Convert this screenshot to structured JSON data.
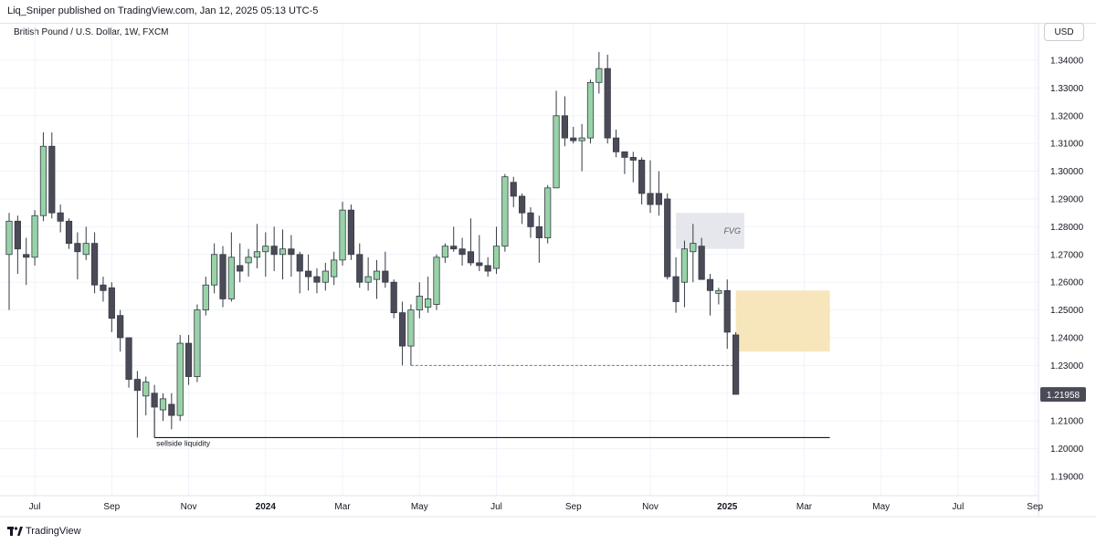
{
  "header": {
    "published": "Liq_Sniper published on TradingView.com, Jan 12, 2025 05:13 UTC-5",
    "symbol": "British Pound / U.S. Dollar, 1W, FXCM",
    "currency_button": "USD"
  },
  "footer": {
    "brand": "TradingView",
    "logo_icon": "tradingview-logo-icon"
  },
  "colors": {
    "bull_fill": "#98d3a7",
    "bear_fill": "#4a4b57",
    "wick": "#363a45",
    "fvg_fill": "#e6e7ec",
    "zone_fill": "#f7e6bb",
    "grid": "#f0f3fa",
    "price_label_bg": "#4a4b57"
  },
  "chart_data": {
    "type": "candlestick",
    "symbol": "GBP/USD",
    "interval": "1W",
    "currency": "USD",
    "ylim": [
      1.185,
      1.345
    ],
    "y_ticks": [
      "1.34000",
      "1.33000",
      "1.32000",
      "1.31000",
      "1.30000",
      "1.29000",
      "1.28000",
      "1.27000",
      "1.26000",
      "1.25000",
      "1.24000",
      "1.23000",
      "1.22000",
      "1.21000",
      "1.20000",
      "1.19000"
    ],
    "x_ticks": [
      {
        "label": "Jul",
        "index": 3,
        "bold": false
      },
      {
        "label": "Sep",
        "index": 12,
        "bold": false
      },
      {
        "label": "Nov",
        "index": 21,
        "bold": false
      },
      {
        "label": "2024",
        "index": 30,
        "bold": true
      },
      {
        "label": "Mar",
        "index": 39,
        "bold": false
      },
      {
        "label": "May",
        "index": 48,
        "bold": false
      },
      {
        "label": "Jul",
        "index": 57,
        "bold": false
      },
      {
        "label": "Sep",
        "index": 66,
        "bold": false
      },
      {
        "label": "Nov",
        "index": 75,
        "bold": false
      },
      {
        "label": "2025",
        "index": 84,
        "bold": true
      },
      {
        "label": "Mar",
        "index": 93,
        "bold": false
      },
      {
        "label": "May",
        "index": 102,
        "bold": false
      },
      {
        "label": "Jul",
        "index": 111,
        "bold": false
      },
      {
        "label": "Sep",
        "index": 120,
        "bold": false
      }
    ],
    "candles": [
      {
        "o": 1.27,
        "h": 1.285,
        "l": 1.25,
        "c": 1.282
      },
      {
        "o": 1.282,
        "h": 1.284,
        "l": 1.263,
        "c": 1.272
      },
      {
        "o": 1.27,
        "h": 1.276,
        "l": 1.259,
        "c": 1.269
      },
      {
        "o": 1.269,
        "h": 1.286,
        "l": 1.266,
        "c": 1.284
      },
      {
        "o": 1.284,
        "h": 1.314,
        "l": 1.282,
        "c": 1.309
      },
      {
        "o": 1.309,
        "h": 1.314,
        "l": 1.283,
        "c": 1.285
      },
      {
        "o": 1.285,
        "h": 1.288,
        "l": 1.278,
        "c": 1.282
      },
      {
        "o": 1.282,
        "h": 1.283,
        "l": 1.272,
        "c": 1.274
      },
      {
        "o": 1.274,
        "h": 1.278,
        "l": 1.261,
        "c": 1.271
      },
      {
        "o": 1.27,
        "h": 1.28,
        "l": 1.268,
        "c": 1.274
      },
      {
        "o": 1.274,
        "h": 1.278,
        "l": 1.256,
        "c": 1.259
      },
      {
        "o": 1.259,
        "h": 1.262,
        "l": 1.253,
        "c": 1.257
      },
      {
        "o": 1.258,
        "h": 1.26,
        "l": 1.242,
        "c": 1.247
      },
      {
        "o": 1.248,
        "h": 1.25,
        "l": 1.235,
        "c": 1.24
      },
      {
        "o": 1.24,
        "h": 1.24,
        "l": 1.222,
        "c": 1.225
      },
      {
        "o": 1.225,
        "h": 1.228,
        "l": 1.204,
        "c": 1.221
      },
      {
        "o": 1.219,
        "h": 1.226,
        "l": 1.212,
        "c": 1.224
      },
      {
        "o": 1.22,
        "h": 1.223,
        "l": 1.213,
        "c": 1.215
      },
      {
        "o": 1.214,
        "h": 1.22,
        "l": 1.21,
        "c": 1.218
      },
      {
        "o": 1.216,
        "h": 1.22,
        "l": 1.207,
        "c": 1.212
      },
      {
        "o": 1.212,
        "h": 1.241,
        "l": 1.21,
        "c": 1.238
      },
      {
        "o": 1.238,
        "h": 1.241,
        "l": 1.223,
        "c": 1.226
      },
      {
        "o": 1.226,
        "h": 1.252,
        "l": 1.224,
        "c": 1.25
      },
      {
        "o": 1.25,
        "h": 1.262,
        "l": 1.248,
        "c": 1.259
      },
      {
        "o": 1.259,
        "h": 1.274,
        "l": 1.256,
        "c": 1.27
      },
      {
        "o": 1.27,
        "h": 1.273,
        "l": 1.251,
        "c": 1.254
      },
      {
        "o": 1.254,
        "h": 1.278,
        "l": 1.253,
        "c": 1.269
      },
      {
        "o": 1.266,
        "h": 1.274,
        "l": 1.26,
        "c": 1.264
      },
      {
        "o": 1.267,
        "h": 1.272,
        "l": 1.262,
        "c": 1.269
      },
      {
        "o": 1.269,
        "h": 1.281,
        "l": 1.265,
        "c": 1.271
      },
      {
        "o": 1.271,
        "h": 1.278,
        "l": 1.262,
        "c": 1.273
      },
      {
        "o": 1.273,
        "h": 1.28,
        "l": 1.264,
        "c": 1.27
      },
      {
        "o": 1.27,
        "h": 1.279,
        "l": 1.261,
        "c": 1.272
      },
      {
        "o": 1.272,
        "h": 1.277,
        "l": 1.262,
        "c": 1.27
      },
      {
        "o": 1.27,
        "h": 1.271,
        "l": 1.256,
        "c": 1.264
      },
      {
        "o": 1.264,
        "h": 1.27,
        "l": 1.257,
        "c": 1.262
      },
      {
        "o": 1.262,
        "h": 1.265,
        "l": 1.256,
        "c": 1.26
      },
      {
        "o": 1.26,
        "h": 1.267,
        "l": 1.257,
        "c": 1.264
      },
      {
        "o": 1.262,
        "h": 1.271,
        "l": 1.259,
        "c": 1.268
      },
      {
        "o": 1.268,
        "h": 1.289,
        "l": 1.266,
        "c": 1.286
      },
      {
        "o": 1.286,
        "h": 1.288,
        "l": 1.268,
        "c": 1.27
      },
      {
        "o": 1.27,
        "h": 1.274,
        "l": 1.258,
        "c": 1.26
      },
      {
        "o": 1.26,
        "h": 1.269,
        "l": 1.257,
        "c": 1.262
      },
      {
        "o": 1.261,
        "h": 1.268,
        "l": 1.254,
        "c": 1.264
      },
      {
        "o": 1.264,
        "h": 1.271,
        "l": 1.258,
        "c": 1.26
      },
      {
        "o": 1.26,
        "h": 1.261,
        "l": 1.247,
        "c": 1.249
      },
      {
        "o": 1.249,
        "h": 1.253,
        "l": 1.23,
        "c": 1.237
      },
      {
        "o": 1.237,
        "h": 1.252,
        "l": 1.23,
        "c": 1.25
      },
      {
        "o": 1.25,
        "h": 1.26,
        "l": 1.247,
        "c": 1.255
      },
      {
        "o": 1.251,
        "h": 1.262,
        "l": 1.249,
        "c": 1.254
      },
      {
        "o": 1.252,
        "h": 1.27,
        "l": 1.25,
        "c": 1.269
      },
      {
        "o": 1.269,
        "h": 1.274,
        "l": 1.267,
        "c": 1.273
      },
      {
        "o": 1.273,
        "h": 1.28,
        "l": 1.271,
        "c": 1.272
      },
      {
        "o": 1.272,
        "h": 1.276,
        "l": 1.266,
        "c": 1.27
      },
      {
        "o": 1.271,
        "h": 1.283,
        "l": 1.266,
        "c": 1.267
      },
      {
        "o": 1.267,
        "h": 1.277,
        "l": 1.264,
        "c": 1.266
      },
      {
        "o": 1.266,
        "h": 1.269,
        "l": 1.262,
        "c": 1.264
      },
      {
        "o": 1.265,
        "h": 1.28,
        "l": 1.263,
        "c": 1.273
      },
      {
        "o": 1.273,
        "h": 1.299,
        "l": 1.271,
        "c": 1.298
      },
      {
        "o": 1.296,
        "h": 1.298,
        "l": 1.287,
        "c": 1.291
      },
      {
        "o": 1.291,
        "h": 1.292,
        "l": 1.281,
        "c": 1.285
      },
      {
        "o": 1.285,
        "h": 1.287,
        "l": 1.276,
        "c": 1.28
      },
      {
        "o": 1.28,
        "h": 1.284,
        "l": 1.267,
        "c": 1.276
      },
      {
        "o": 1.276,
        "h": 1.295,
        "l": 1.274,
        "c": 1.294
      },
      {
        "o": 1.294,
        "h": 1.329,
        "l": 1.294,
        "c": 1.32
      },
      {
        "o": 1.32,
        "h": 1.327,
        "l": 1.309,
        "c": 1.312
      },
      {
        "o": 1.312,
        "h": 1.316,
        "l": 1.31,
        "c": 1.311
      },
      {
        "o": 1.311,
        "h": 1.317,
        "l": 1.3,
        "c": 1.312
      },
      {
        "o": 1.312,
        "h": 1.333,
        "l": 1.31,
        "c": 1.332
      },
      {
        "o": 1.332,
        "h": 1.343,
        "l": 1.328,
        "c": 1.337
      },
      {
        "o": 1.337,
        "h": 1.342,
        "l": 1.31,
        "c": 1.312
      },
      {
        "o": 1.312,
        "h": 1.315,
        "l": 1.305,
        "c": 1.307
      },
      {
        "o": 1.307,
        "h": 1.307,
        "l": 1.299,
        "c": 1.305
      },
      {
        "o": 1.305,
        "h": 1.307,
        "l": 1.296,
        "c": 1.304
      },
      {
        "o": 1.304,
        "h": 1.305,
        "l": 1.288,
        "c": 1.292
      },
      {
        "o": 1.292,
        "h": 1.304,
        "l": 1.285,
        "c": 1.288
      },
      {
        "o": 1.292,
        "h": 1.3,
        "l": 1.284,
        "c": 1.288
      },
      {
        "o": 1.29,
        "h": 1.292,
        "l": 1.261,
        "c": 1.262
      },
      {
        "o": 1.262,
        "h": 1.269,
        "l": 1.249,
        "c": 1.253
      },
      {
        "o": 1.26,
        "h": 1.275,
        "l": 1.251,
        "c": 1.272
      },
      {
        "o": 1.271,
        "h": 1.281,
        "l": 1.26,
        "c": 1.274
      },
      {
        "o": 1.273,
        "h": 1.276,
        "l": 1.261,
        "c": 1.261
      },
      {
        "o": 1.261,
        "h": 1.263,
        "l": 1.248,
        "c": 1.257
      },
      {
        "o": 1.256,
        "h": 1.258,
        "l": 1.252,
        "c": 1.257
      },
      {
        "o": 1.257,
        "h": 1.261,
        "l": 1.236,
        "c": 1.242
      },
      {
        "o": 1.241,
        "h": 1.242,
        "l": 1.22,
        "c": 1.2196
      }
    ],
    "last_price": 1.21958,
    "last_price_label": "1.21958",
    "annotations": [
      {
        "type": "rect",
        "label": "FVG",
        "from_index": 78,
        "to_index": 86,
        "y_top": 1.285,
        "y_bottom": 1.272
      },
      {
        "type": "rect",
        "label": "",
        "from_index": 85,
        "to_index": 96,
        "y_top": 1.257,
        "y_bottom": 1.235
      },
      {
        "type": "hline",
        "label": "sellside liquidity",
        "from_index": 17,
        "to_index": 96,
        "y": 1.204
      },
      {
        "type": "dashed-hline",
        "label": "",
        "from_index": 47,
        "to_index": 85,
        "y": 1.23
      }
    ],
    "grid": true,
    "legend": "none"
  }
}
